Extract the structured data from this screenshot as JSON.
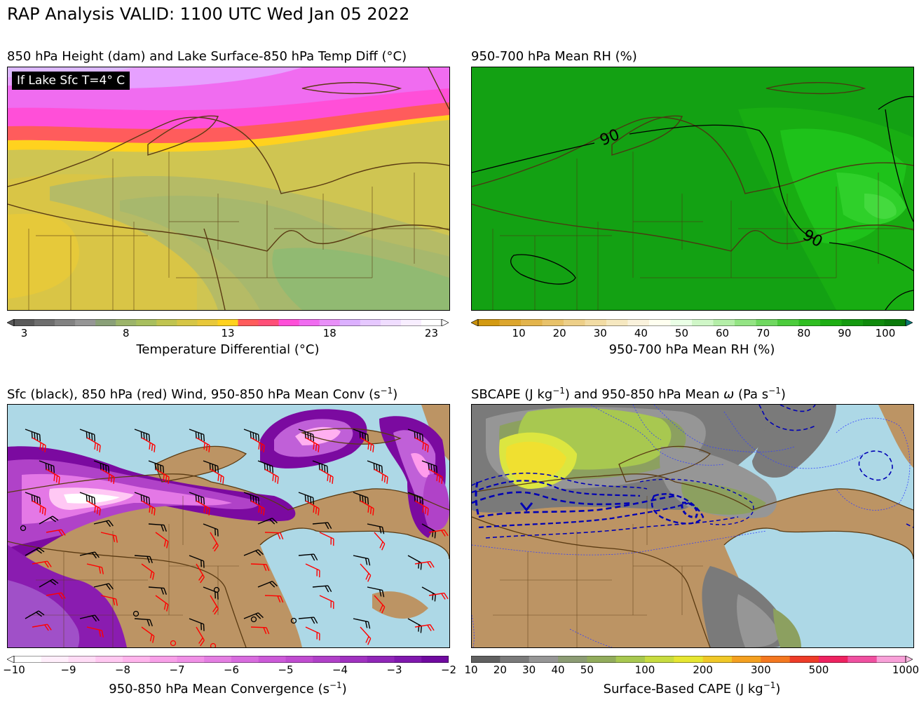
{
  "title": "RAP Analysis VALID: 1100 UTC Wed Jan 05 2022",
  "colors": {
    "lake": "#add8e6",
    "land": "#bc9464",
    "coast": "#5a3a12"
  },
  "panels": [
    {
      "title": "850 hPa Height (dam) and Lake Surface-850 hPa Temp Diff (°C)",
      "badge": "If Lake Sfc T=4° C",
      "colorbar": {
        "label": "Temperature Differential (°C)",
        "ticks": [
          "3",
          "8",
          "13",
          "18",
          "23"
        ],
        "tick_values": [
          3,
          8,
          13,
          18,
          23
        ],
        "range": [
          2.5,
          23.5
        ]
      }
    },
    {
      "title": "950-700 hPa Mean RH (%)",
      "contour_labels": [
        "90",
        "90"
      ],
      "colorbar": {
        "label": "950-700 hPa Mean RH (%)",
        "ticks": [
          "10",
          "20",
          "30",
          "40",
          "50",
          "60",
          "70",
          "80",
          "90",
          "100"
        ],
        "tick_values": [
          10,
          20,
          30,
          40,
          50,
          60,
          70,
          80,
          90,
          100
        ],
        "range": [
          0,
          105
        ]
      }
    },
    {
      "title_main": "Sfc (black), 850 hPa (red) Wind, 950-850 hPa Mean Conv (s",
      "title_sup": "−1",
      "title_end": ")",
      "colorbar": {
        "label_main": "950-850 hPa Mean Convergence (s",
        "label_sup": "−1",
        "label_end": ")",
        "ticks": [
          "−10",
          "−9",
          "−8",
          "−7",
          "−6",
          "−5",
          "−4",
          "−3",
          "−2"
        ],
        "tick_values": [
          -10,
          -9,
          -8,
          -7,
          -6,
          -5,
          -4,
          -3,
          -2
        ],
        "range": [
          -10,
          -2
        ]
      }
    },
    {
      "title_a": "SBCAPE (J kg",
      "title_a_sup": "−1",
      "title_b": ") and 950-850 hPa Mean ",
      "title_omega": "ω",
      "title_c": " (Pa s",
      "title_c_sup": "−1",
      "title_d": ")",
      "colorbar": {
        "label_main": "Surface-Based CAPE (J kg",
        "label_sup": "−1",
        "label_end": ")",
        "ticks": [
          "10",
          "20",
          "30",
          "40",
          "50",
          "100",
          "200",
          "300",
          "500",
          "1000"
        ],
        "tick_positions": [
          0,
          1,
          2,
          3,
          4,
          6,
          8,
          10,
          12,
          15
        ],
        "bins": 15
      }
    }
  ]
}
